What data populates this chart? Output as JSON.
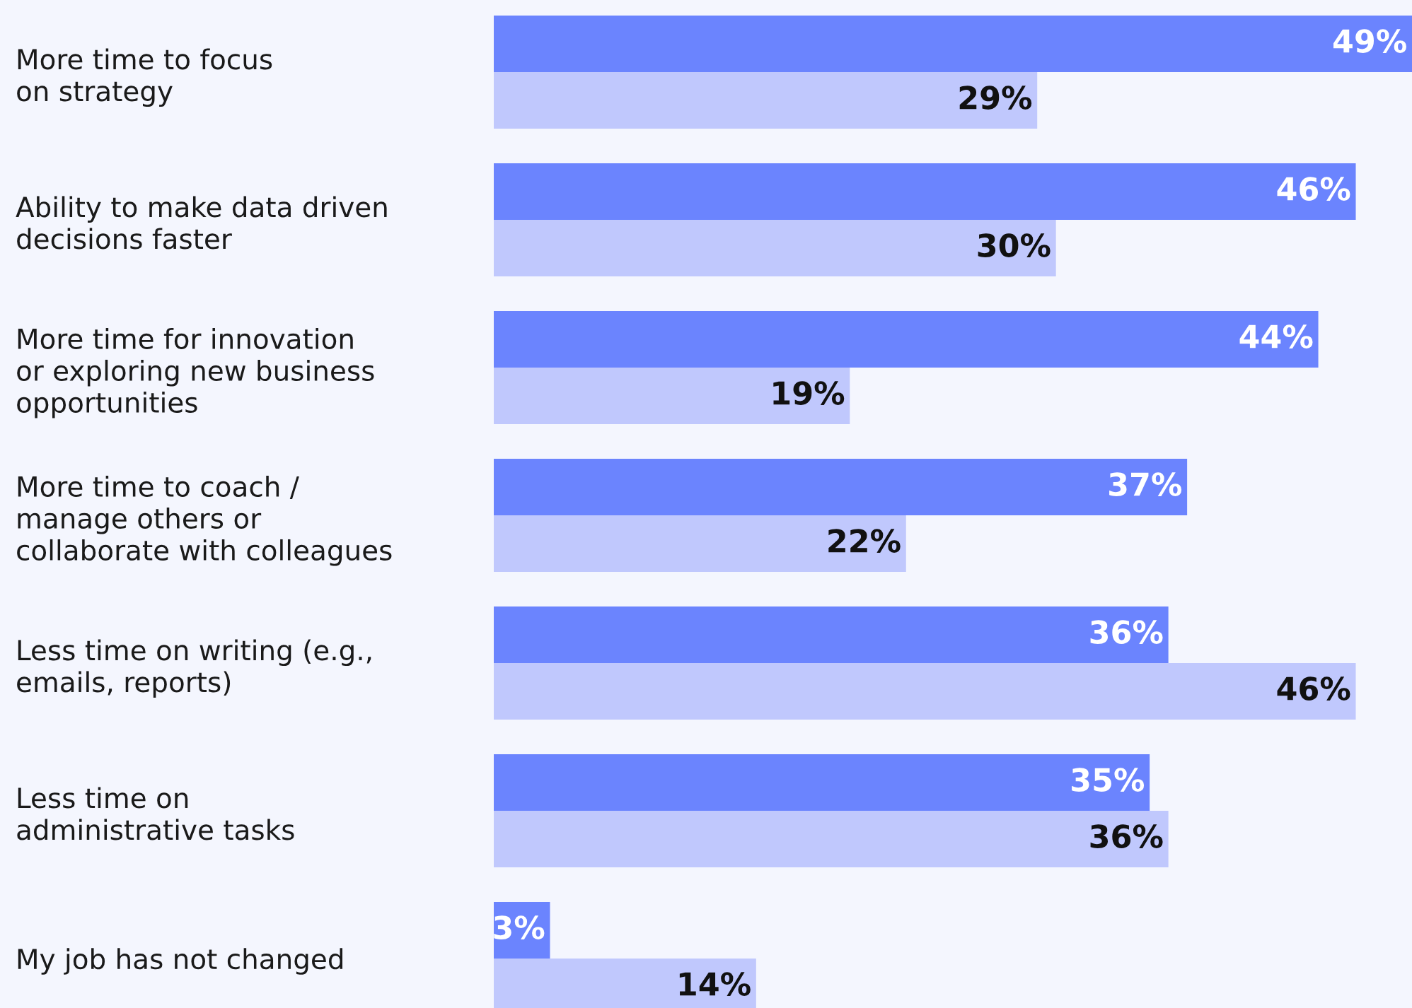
{
  "chart_data": {
    "type": "bar",
    "orientation": "horizontal",
    "grid": false,
    "legend": false,
    "categories": [
      "More time to focus\non strategy",
      "Ability to make data driven\ndecisions faster",
      "More time for innovation\nor exploring new business\nopportunities",
      "More time to coach /\nmanage others or\ncollaborate with colleagues",
      "Less time on writing (e.g.,\nemails, reports)",
      "Less time on\nadministrative tasks",
      "My job has not changed"
    ],
    "series": [
      {
        "color": "#6b84fe",
        "values": [
          49,
          46,
          44,
          37,
          36,
          35,
          3
        ],
        "value_labels": [
          "49%",
          "46%",
          "44%",
          "37%",
          "36%",
          "35%",
          "3%"
        ]
      },
      {
        "color": "#c0c8fd",
        "values": [
          29,
          30,
          19,
          22,
          46,
          36,
          14
        ],
        "value_labels": [
          "29%",
          "30%",
          "19%",
          "22%",
          "46%",
          "36%",
          "14%"
        ]
      }
    ]
  }
}
